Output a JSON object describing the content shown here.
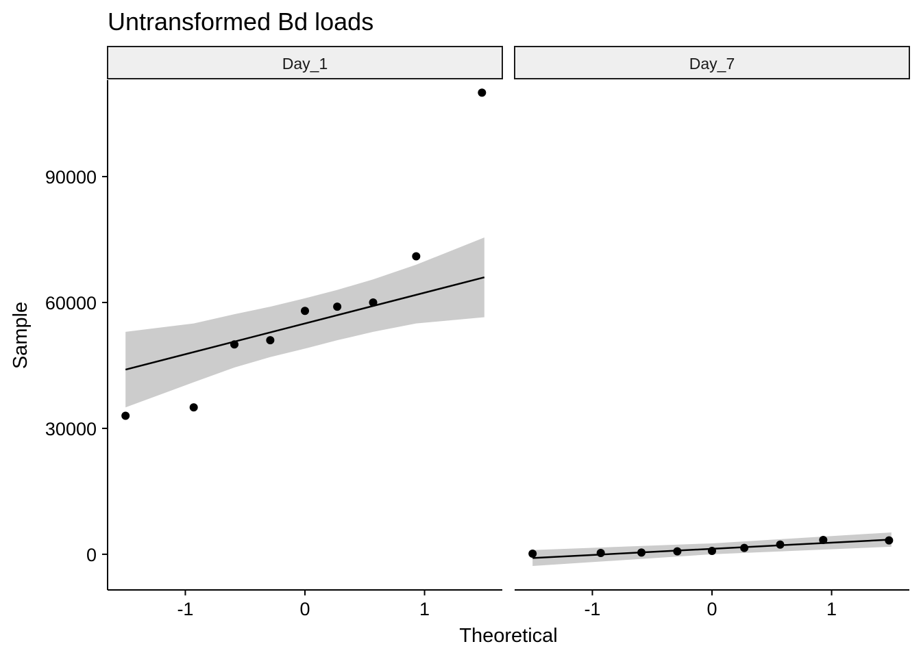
{
  "chart_data": {
    "type": "scatter",
    "title": "Untransformed Bd loads",
    "xlabel": "Theoretical",
    "ylabel": "Sample",
    "ylim": [
      -8500,
      113000
    ],
    "xlim": [
      -1.65,
      1.65
    ],
    "y_ticks": [
      0,
      30000,
      60000,
      90000
    ],
    "y_tick_labels": [
      "0",
      "30000",
      "60000",
      "90000"
    ],
    "x_ticks": [
      -1,
      0,
      1
    ],
    "x_tick_labels": [
      "-1",
      "0",
      "1"
    ],
    "grid": false,
    "colors": {
      "points": "#000000",
      "line": "#000000",
      "band": "#cccccc",
      "strip_fill": "#efefef"
    },
    "panels": [
      {
        "label": "Day_1",
        "points": {
          "x": [
            -1.5,
            -0.93,
            -0.59,
            -0.29,
            0.0,
            0.27,
            0.57,
            0.93,
            1.48
          ],
          "y": [
            33000,
            35000,
            50000,
            51000,
            58000,
            59000,
            60000,
            71000,
            110000
          ]
        },
        "fit": {
          "x": [
            -1.5,
            1.5
          ],
          "y": [
            44000,
            66000
          ]
        },
        "band": {
          "x": [
            -1.5,
            -0.93,
            -0.59,
            -0.29,
            0.0,
            0.27,
            0.57,
            0.93,
            1.5
          ],
          "lower": [
            35000,
            41000,
            44500,
            47000,
            49000,
            51000,
            53000,
            55000,
            56500
          ],
          "upper": [
            53000,
            55000,
            57200,
            59000,
            61000,
            63000,
            65500,
            69000,
            75500
          ]
        }
      },
      {
        "label": "Day_7",
        "points": {
          "x": [
            -1.5,
            -0.93,
            -0.59,
            -0.29,
            0.0,
            0.27,
            0.57,
            0.93,
            1.48
          ],
          "y": [
            150,
            300,
            400,
            700,
            800,
            1500,
            2300,
            3400,
            3300
          ]
        },
        "fit": {
          "x": [
            -1.5,
            1.5
          ],
          "y": [
            -900,
            3500
          ]
        },
        "band": {
          "x": [
            -1.5,
            0.0,
            1.5
          ],
          "lower": [
            -2800,
            0,
            1800
          ],
          "upper": [
            1000,
            2600,
            5200
          ]
        }
      }
    ]
  }
}
